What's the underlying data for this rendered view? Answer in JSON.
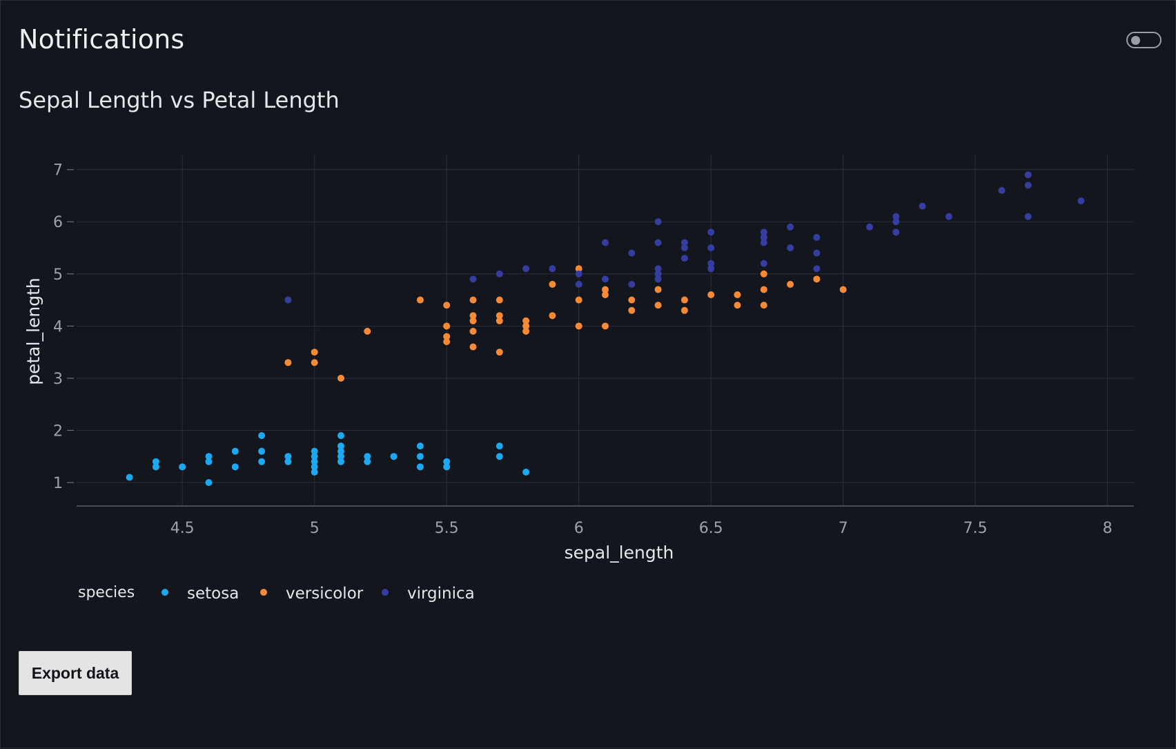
{
  "header": {
    "title": "Notifications"
  },
  "toggle": {
    "on": false
  },
  "section": {
    "title": "Sepal Length vs Petal Length"
  },
  "actions": {
    "export_label": "Export data"
  },
  "colors": {
    "setosa": "#1ca9f2",
    "versicolor": "#f88a35",
    "virginica": "#333ea0",
    "background": "#14161d",
    "grid": "#2c2f38"
  },
  "chart_data": {
    "type": "scatter",
    "title": "",
    "xlabel": "sepal_length",
    "ylabel": "petal_length",
    "xlim": [
      4.1,
      8.1
    ],
    "ylim": [
      0.55,
      7.3
    ],
    "xticks": [
      4.5,
      5,
      5.5,
      6,
      6.5,
      7,
      7.5,
      8
    ],
    "yticks": [
      1,
      2,
      3,
      4,
      5,
      6,
      7
    ],
    "grid": true,
    "legend": {
      "title": "species",
      "position": "bottom-left",
      "horizontal": true
    },
    "series": [
      {
        "name": "setosa",
        "color": "#1ca9f2",
        "points": [
          [
            4.3,
            1.1
          ],
          [
            4.4,
            1.3
          ],
          [
            4.4,
            1.4
          ],
          [
            4.5,
            1.3
          ],
          [
            4.6,
            1.0
          ],
          [
            4.6,
            1.4
          ],
          [
            4.6,
            1.5
          ],
          [
            4.7,
            1.3
          ],
          [
            4.7,
            1.6
          ],
          [
            4.8,
            1.4
          ],
          [
            4.8,
            1.6
          ],
          [
            4.8,
            1.9
          ],
          [
            4.9,
            1.4
          ],
          [
            4.9,
            1.5
          ],
          [
            5.0,
            1.2
          ],
          [
            5.0,
            1.3
          ],
          [
            5.0,
            1.4
          ],
          [
            5.0,
            1.5
          ],
          [
            5.0,
            1.6
          ],
          [
            5.1,
            1.4
          ],
          [
            5.1,
            1.5
          ],
          [
            5.1,
            1.6
          ],
          [
            5.1,
            1.7
          ],
          [
            5.1,
            1.9
          ],
          [
            5.2,
            1.4
          ],
          [
            5.2,
            1.5
          ],
          [
            5.3,
            1.5
          ],
          [
            5.4,
            1.3
          ],
          [
            5.4,
            1.5
          ],
          [
            5.4,
            1.7
          ],
          [
            5.5,
            1.3
          ],
          [
            5.5,
            1.4
          ],
          [
            5.7,
            1.5
          ],
          [
            5.7,
            1.7
          ],
          [
            5.8,
            1.2
          ]
        ]
      },
      {
        "name": "versicolor",
        "color": "#f88a35",
        "points": [
          [
            4.9,
            3.3
          ],
          [
            5.0,
            3.3
          ],
          [
            5.0,
            3.5
          ],
          [
            5.1,
            3.0
          ],
          [
            5.2,
            3.9
          ],
          [
            5.4,
            4.5
          ],
          [
            5.5,
            3.7
          ],
          [
            5.5,
            3.8
          ],
          [
            5.5,
            4.0
          ],
          [
            5.5,
            4.4
          ],
          [
            5.6,
            3.6
          ],
          [
            5.6,
            3.9
          ],
          [
            5.6,
            4.1
          ],
          [
            5.6,
            4.2
          ],
          [
            5.6,
            4.5
          ],
          [
            5.7,
            3.5
          ],
          [
            5.7,
            4.1
          ],
          [
            5.7,
            4.2
          ],
          [
            5.7,
            4.5
          ],
          [
            5.8,
            3.9
          ],
          [
            5.8,
            4.0
          ],
          [
            5.8,
            4.1
          ],
          [
            5.9,
            4.2
          ],
          [
            5.9,
            4.8
          ],
          [
            6.0,
            4.0
          ],
          [
            6.0,
            4.5
          ],
          [
            6.0,
            5.1
          ],
          [
            6.1,
            4.0
          ],
          [
            6.1,
            4.6
          ],
          [
            6.1,
            4.7
          ],
          [
            6.2,
            4.3
          ],
          [
            6.2,
            4.5
          ],
          [
            6.3,
            4.4
          ],
          [
            6.3,
            4.7
          ],
          [
            6.4,
            4.3
          ],
          [
            6.4,
            4.5
          ],
          [
            6.5,
            4.6
          ],
          [
            6.6,
            4.4
          ],
          [
            6.6,
            4.6
          ],
          [
            6.7,
            4.4
          ],
          [
            6.7,
            4.7
          ],
          [
            6.7,
            5.0
          ],
          [
            6.8,
            4.8
          ],
          [
            6.9,
            4.9
          ],
          [
            7.0,
            4.7
          ]
        ]
      },
      {
        "name": "virginica",
        "color": "#333ea0",
        "points": [
          [
            4.9,
            4.5
          ],
          [
            5.6,
            4.9
          ],
          [
            5.7,
            5.0
          ],
          [
            5.8,
            5.1
          ],
          [
            5.9,
            5.1
          ],
          [
            6.0,
            4.8
          ],
          [
            6.0,
            5.0
          ],
          [
            6.1,
            4.9
          ],
          [
            6.1,
            5.6
          ],
          [
            6.2,
            4.8
          ],
          [
            6.2,
            5.4
          ],
          [
            6.3,
            4.9
          ],
          [
            6.3,
            5.0
          ],
          [
            6.3,
            5.1
          ],
          [
            6.3,
            5.6
          ],
          [
            6.3,
            6.0
          ],
          [
            6.4,
            5.3
          ],
          [
            6.4,
            5.5
          ],
          [
            6.4,
            5.6
          ],
          [
            6.5,
            5.1
          ],
          [
            6.5,
            5.2
          ],
          [
            6.5,
            5.5
          ],
          [
            6.5,
            5.8
          ],
          [
            6.7,
            5.2
          ],
          [
            6.7,
            5.6
          ],
          [
            6.7,
            5.7
          ],
          [
            6.7,
            5.8
          ],
          [
            6.8,
            5.5
          ],
          [
            6.8,
            5.9
          ],
          [
            6.9,
            5.1
          ],
          [
            6.9,
            5.4
          ],
          [
            6.9,
            5.7
          ],
          [
            7.1,
            5.9
          ],
          [
            7.2,
            5.8
          ],
          [
            7.2,
            6.0
          ],
          [
            7.2,
            6.1
          ],
          [
            7.3,
            6.3
          ],
          [
            7.4,
            6.1
          ],
          [
            7.6,
            6.6
          ],
          [
            7.7,
            6.1
          ],
          [
            7.7,
            6.7
          ],
          [
            7.7,
            6.9
          ],
          [
            7.9,
            6.4
          ]
        ]
      }
    ]
  }
}
